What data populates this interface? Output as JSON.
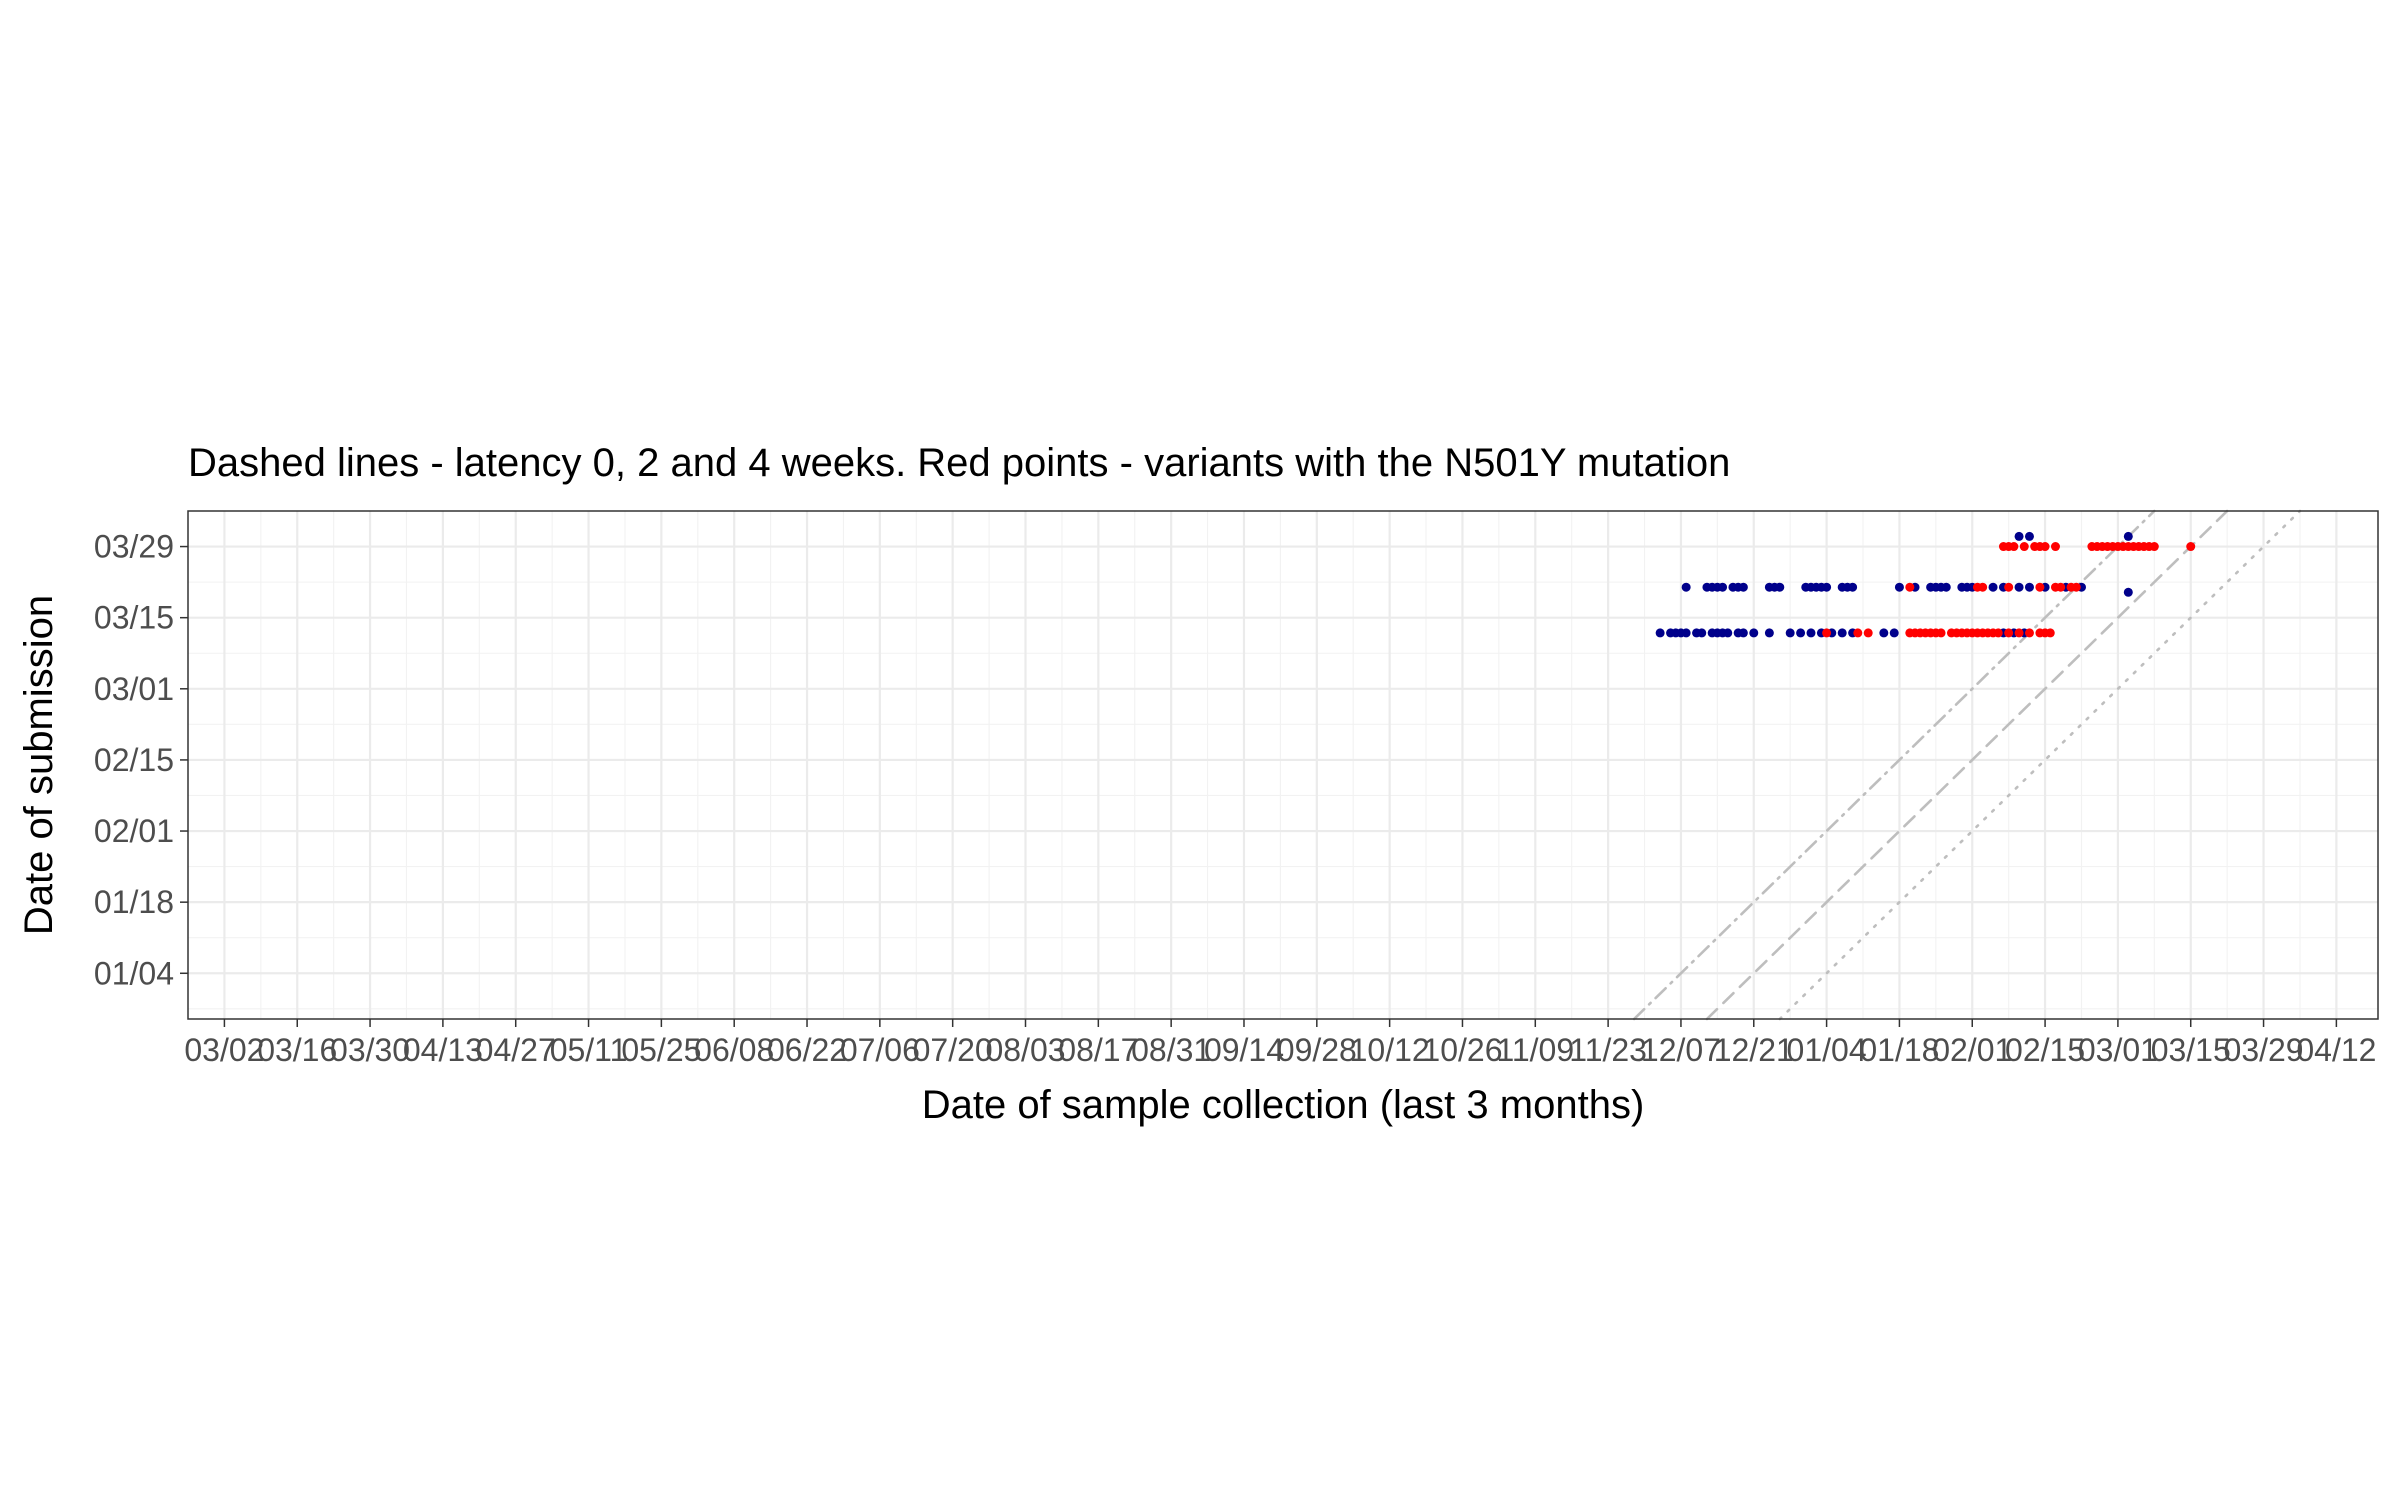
{
  "chart_data": {
    "type": "scatter",
    "title": "Dashed lines - latency 0, 2 and 4 weeks. Red points - variants with the N501Y mutation",
    "xlabel": "Date of sample collection (last 3 months)",
    "ylabel": "Date of submission",
    "x_axis": {
      "type": "date",
      "range": [
        "2020-02-24",
        "2021-04-20"
      ],
      "ticks": [
        {
          "date": "2020-03-02",
          "label": "03/02"
        },
        {
          "date": "2020-03-16",
          "label": "03/16"
        },
        {
          "date": "2020-03-30",
          "label": "03/30"
        },
        {
          "date": "2020-04-13",
          "label": "04/13"
        },
        {
          "date": "2020-04-27",
          "label": "04/27"
        },
        {
          "date": "2020-05-11",
          "label": "05/11"
        },
        {
          "date": "2020-05-25",
          "label": "05/25"
        },
        {
          "date": "2020-06-08",
          "label": "06/08"
        },
        {
          "date": "2020-06-22",
          "label": "06/22"
        },
        {
          "date": "2020-07-06",
          "label": "07/06"
        },
        {
          "date": "2020-07-20",
          "label": "07/20"
        },
        {
          "date": "2020-08-03",
          "label": "08/03"
        },
        {
          "date": "2020-08-17",
          "label": "08/17"
        },
        {
          "date": "2020-08-31",
          "label": "08/31"
        },
        {
          "date": "2020-09-14",
          "label": "09/14"
        },
        {
          "date": "2020-09-28",
          "label": "09/28"
        },
        {
          "date": "2020-10-12",
          "label": "10/12"
        },
        {
          "date": "2020-10-26",
          "label": "10/26"
        },
        {
          "date": "2020-11-09",
          "label": "11/09"
        },
        {
          "date": "2020-11-23",
          "label": "11/23"
        },
        {
          "date": "2020-12-07",
          "label": "12/07"
        },
        {
          "date": "2020-12-21",
          "label": "12/21"
        },
        {
          "date": "2021-01-04",
          "label": "01/04"
        },
        {
          "date": "2021-01-18",
          "label": "01/18"
        },
        {
          "date": "2021-02-01",
          "label": "02/01"
        },
        {
          "date": "2021-02-15",
          "label": "02/15"
        },
        {
          "date": "2021-03-01",
          "label": "03/01"
        },
        {
          "date": "2021-03-15",
          "label": "03/15"
        },
        {
          "date": "2021-03-29",
          "label": "03/29"
        },
        {
          "date": "2021-04-12",
          "label": "04/12"
        }
      ]
    },
    "y_axis": {
      "type": "date",
      "range": [
        "2020-12-26",
        "2021-04-05"
      ],
      "ticks": [
        {
          "date": "2021-01-04",
          "label": "01/04"
        },
        {
          "date": "2021-01-18",
          "label": "01/18"
        },
        {
          "date": "2021-02-01",
          "label": "02/01"
        },
        {
          "date": "2021-02-15",
          "label": "02/15"
        },
        {
          "date": "2021-03-01",
          "label": "03/01"
        },
        {
          "date": "2021-03-15",
          "label": "03/15"
        },
        {
          "date": "2021-03-29",
          "label": "03/29"
        }
      ]
    },
    "grid": true,
    "reference_lines": [
      {
        "latency_weeks": 0,
        "style": "dotted",
        "color": "#bebebe"
      },
      {
        "latency_weeks": 2,
        "style": "dashed",
        "color": "#bebebe"
      },
      {
        "latency_weeks": 4,
        "style": "dashdot",
        "color": "#bebebe"
      }
    ],
    "series": [
      {
        "color": "#00008b",
        "points": [
          {
            "x": "2020-12-03",
            "y": "2021-03-12"
          },
          {
            "x": "2020-12-05",
            "y": "2021-03-12"
          },
          {
            "x": "2020-12-06",
            "y": "2021-03-12"
          },
          {
            "x": "2020-12-07",
            "y": "2021-03-12"
          },
          {
            "x": "2020-12-08",
            "y": "2021-03-12"
          },
          {
            "x": "2020-12-10",
            "y": "2021-03-12"
          },
          {
            "x": "2020-12-11",
            "y": "2021-03-12"
          },
          {
            "x": "2020-12-13",
            "y": "2021-03-12"
          },
          {
            "x": "2020-12-14",
            "y": "2021-03-12"
          },
          {
            "x": "2020-12-15",
            "y": "2021-03-12"
          },
          {
            "x": "2020-12-16",
            "y": "2021-03-12"
          },
          {
            "x": "2020-12-18",
            "y": "2021-03-12"
          },
          {
            "x": "2020-12-19",
            "y": "2021-03-12"
          },
          {
            "x": "2020-12-21",
            "y": "2021-03-12"
          },
          {
            "x": "2020-12-24",
            "y": "2021-03-12"
          },
          {
            "x": "2020-12-28",
            "y": "2021-03-12"
          },
          {
            "x": "2020-12-30",
            "y": "2021-03-12"
          },
          {
            "x": "2021-01-01",
            "y": "2021-03-12"
          },
          {
            "x": "2021-01-03",
            "y": "2021-03-12"
          },
          {
            "x": "2021-01-05",
            "y": "2021-03-12"
          },
          {
            "x": "2021-01-07",
            "y": "2021-03-12"
          },
          {
            "x": "2021-01-09",
            "y": "2021-03-12"
          },
          {
            "x": "2021-01-15",
            "y": "2021-03-12"
          },
          {
            "x": "2021-01-17",
            "y": "2021-03-12"
          },
          {
            "x": "2021-02-07",
            "y": "2021-03-12"
          },
          {
            "x": "2021-02-09",
            "y": "2021-03-12"
          },
          {
            "x": "2021-02-11",
            "y": "2021-03-12"
          },
          {
            "x": "2020-12-08",
            "y": "2021-03-21"
          },
          {
            "x": "2020-12-12",
            "y": "2021-03-21"
          },
          {
            "x": "2020-12-13",
            "y": "2021-03-21"
          },
          {
            "x": "2020-12-14",
            "y": "2021-03-21"
          },
          {
            "x": "2020-12-15",
            "y": "2021-03-21"
          },
          {
            "x": "2020-12-17",
            "y": "2021-03-21"
          },
          {
            "x": "2020-12-18",
            "y": "2021-03-21"
          },
          {
            "x": "2020-12-19",
            "y": "2021-03-21"
          },
          {
            "x": "2020-12-24",
            "y": "2021-03-21"
          },
          {
            "x": "2020-12-25",
            "y": "2021-03-21"
          },
          {
            "x": "2020-12-26",
            "y": "2021-03-21"
          },
          {
            "x": "2020-12-31",
            "y": "2021-03-21"
          },
          {
            "x": "2021-01-01",
            "y": "2021-03-21"
          },
          {
            "x": "2021-01-02",
            "y": "2021-03-21"
          },
          {
            "x": "2021-01-03",
            "y": "2021-03-21"
          },
          {
            "x": "2021-01-04",
            "y": "2021-03-21"
          },
          {
            "x": "2021-01-07",
            "y": "2021-03-21"
          },
          {
            "x": "2021-01-08",
            "y": "2021-03-21"
          },
          {
            "x": "2021-01-09",
            "y": "2021-03-21"
          },
          {
            "x": "2021-01-18",
            "y": "2021-03-21"
          },
          {
            "x": "2021-01-21",
            "y": "2021-03-21"
          },
          {
            "x": "2021-01-24",
            "y": "2021-03-21"
          },
          {
            "x": "2021-01-25",
            "y": "2021-03-21"
          },
          {
            "x": "2021-01-26",
            "y": "2021-03-21"
          },
          {
            "x": "2021-01-27",
            "y": "2021-03-21"
          },
          {
            "x": "2021-01-30",
            "y": "2021-03-21"
          },
          {
            "x": "2021-01-31",
            "y": "2021-03-21"
          },
          {
            "x": "2021-02-01",
            "y": "2021-03-21"
          },
          {
            "x": "2021-02-05",
            "y": "2021-03-21"
          },
          {
            "x": "2021-02-07",
            "y": "2021-03-21"
          },
          {
            "x": "2021-02-10",
            "y": "2021-03-21"
          },
          {
            "x": "2021-02-12",
            "y": "2021-03-21"
          },
          {
            "x": "2021-02-15",
            "y": "2021-03-21"
          },
          {
            "x": "2021-02-19",
            "y": "2021-03-21"
          },
          {
            "x": "2021-02-22",
            "y": "2021-03-21"
          },
          {
            "x": "2021-03-03",
            "y": "2021-03-20"
          },
          {
            "x": "2021-02-10",
            "y": "2021-03-31"
          },
          {
            "x": "2021-02-12",
            "y": "2021-03-31"
          },
          {
            "x": "2021-03-03",
            "y": "2021-03-31"
          }
        ]
      },
      {
        "color": "#ff0000",
        "points": [
          {
            "x": "2021-01-04",
            "y": "2021-03-12"
          },
          {
            "x": "2021-01-10",
            "y": "2021-03-12"
          },
          {
            "x": "2021-01-12",
            "y": "2021-03-12"
          },
          {
            "x": "2021-01-20",
            "y": "2021-03-12"
          },
          {
            "x": "2021-01-21",
            "y": "2021-03-12"
          },
          {
            "x": "2021-01-22",
            "y": "2021-03-12"
          },
          {
            "x": "2021-01-23",
            "y": "2021-03-12"
          },
          {
            "x": "2021-01-24",
            "y": "2021-03-12"
          },
          {
            "x": "2021-01-25",
            "y": "2021-03-12"
          },
          {
            "x": "2021-01-26",
            "y": "2021-03-12"
          },
          {
            "x": "2021-01-28",
            "y": "2021-03-12"
          },
          {
            "x": "2021-01-29",
            "y": "2021-03-12"
          },
          {
            "x": "2021-01-30",
            "y": "2021-03-12"
          },
          {
            "x": "2021-01-31",
            "y": "2021-03-12"
          },
          {
            "x": "2021-02-01",
            "y": "2021-03-12"
          },
          {
            "x": "2021-02-02",
            "y": "2021-03-12"
          },
          {
            "x": "2021-02-03",
            "y": "2021-03-12"
          },
          {
            "x": "2021-02-04",
            "y": "2021-03-12"
          },
          {
            "x": "2021-02-05",
            "y": "2021-03-12"
          },
          {
            "x": "2021-02-06",
            "y": "2021-03-12"
          },
          {
            "x": "2021-02-08",
            "y": "2021-03-12"
          },
          {
            "x": "2021-02-10",
            "y": "2021-03-12"
          },
          {
            "x": "2021-02-12",
            "y": "2021-03-12"
          },
          {
            "x": "2021-02-14",
            "y": "2021-03-12"
          },
          {
            "x": "2021-02-15",
            "y": "2021-03-12"
          },
          {
            "x": "2021-02-16",
            "y": "2021-03-12"
          },
          {
            "x": "2021-01-20",
            "y": "2021-03-21"
          },
          {
            "x": "2021-02-02",
            "y": "2021-03-21"
          },
          {
            "x": "2021-02-03",
            "y": "2021-03-21"
          },
          {
            "x": "2021-02-08",
            "y": "2021-03-21"
          },
          {
            "x": "2021-02-14",
            "y": "2021-03-21"
          },
          {
            "x": "2021-02-17",
            "y": "2021-03-21"
          },
          {
            "x": "2021-02-18",
            "y": "2021-03-21"
          },
          {
            "x": "2021-02-20",
            "y": "2021-03-21"
          },
          {
            "x": "2021-02-21",
            "y": "2021-03-21"
          },
          {
            "x": "2021-02-07",
            "y": "2021-03-29"
          },
          {
            "x": "2021-02-08",
            "y": "2021-03-29"
          },
          {
            "x": "2021-02-09",
            "y": "2021-03-29"
          },
          {
            "x": "2021-02-11",
            "y": "2021-03-29"
          },
          {
            "x": "2021-02-13",
            "y": "2021-03-29"
          },
          {
            "x": "2021-02-14",
            "y": "2021-03-29"
          },
          {
            "x": "2021-02-15",
            "y": "2021-03-29"
          },
          {
            "x": "2021-02-17",
            "y": "2021-03-29"
          },
          {
            "x": "2021-02-24",
            "y": "2021-03-29"
          },
          {
            "x": "2021-02-25",
            "y": "2021-03-29"
          },
          {
            "x": "2021-02-26",
            "y": "2021-03-29"
          },
          {
            "x": "2021-02-27",
            "y": "2021-03-29"
          },
          {
            "x": "2021-02-28",
            "y": "2021-03-29"
          },
          {
            "x": "2021-03-01",
            "y": "2021-03-29"
          },
          {
            "x": "2021-03-02",
            "y": "2021-03-29"
          },
          {
            "x": "2021-03-03",
            "y": "2021-03-29"
          },
          {
            "x": "2021-03-04",
            "y": "2021-03-29"
          },
          {
            "x": "2021-03-05",
            "y": "2021-03-29"
          },
          {
            "x": "2021-03-06",
            "y": "2021-03-29"
          },
          {
            "x": "2021-03-07",
            "y": "2021-03-29"
          },
          {
            "x": "2021-03-08",
            "y": "2021-03-29"
          },
          {
            "x": "2021-03-15",
            "y": "2021-03-29"
          }
        ]
      }
    ]
  }
}
